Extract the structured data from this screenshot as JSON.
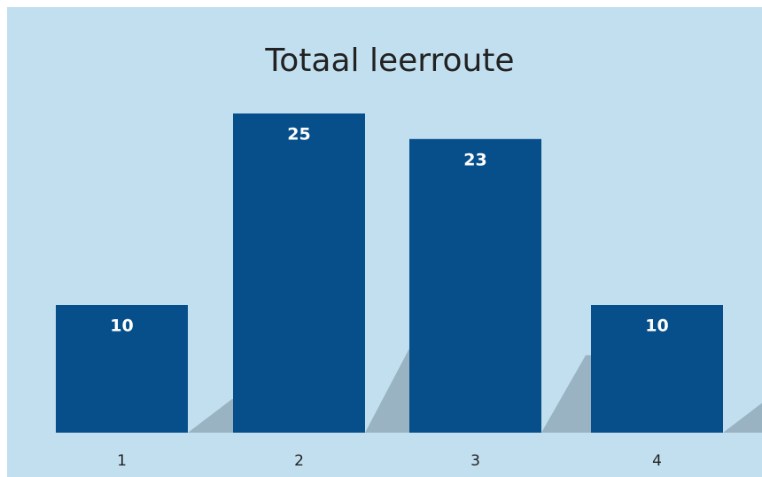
{
  "chart_data": {
    "type": "bar",
    "title": "Totaal leerroute",
    "categories": [
      "1",
      "2",
      "3",
      "4"
    ],
    "values": [
      10,
      25,
      23,
      10
    ],
    "color": "#074f8a"
  }
}
